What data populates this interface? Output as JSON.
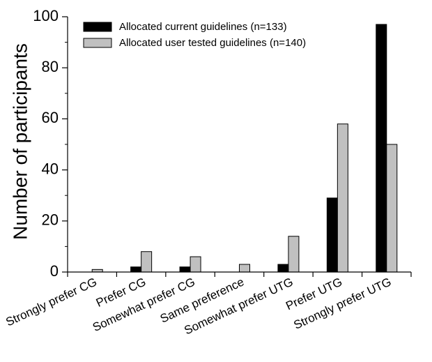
{
  "chart_data": {
    "type": "bar",
    "categories": [
      "Strongly prefer CG",
      "Prefer CG",
      "Somewhat prefer CG",
      "Same preference",
      "Somewhat prefer UTG",
      "Prefer UTG",
      "Strongly prefer UTG"
    ],
    "series": [
      {
        "name": "Allocated current guidelines (n=133)",
        "color": "#000000",
        "values": [
          0,
          2,
          2,
          0,
          3,
          29,
          97
        ]
      },
      {
        "name": "Allocated user tested guidelines (n=140)",
        "color": "#c0c0c0",
        "values": [
          1,
          8,
          6,
          3,
          14,
          58,
          50
        ]
      }
    ],
    "ylabel": "Number of participants",
    "ylim": [
      0,
      100
    ],
    "yticks": [
      0,
      20,
      40,
      60,
      80,
      100
    ],
    "legend": "top-left",
    "grid": false
  }
}
